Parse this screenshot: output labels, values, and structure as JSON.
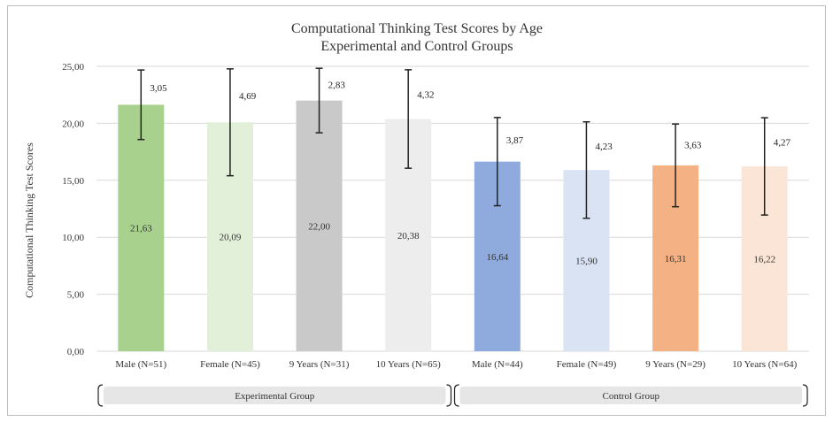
{
  "chart_data": {
    "type": "bar",
    "title": "Computational Thinking Test Scores by Age",
    "subtitle": "Experimental and Control Groups",
    "ylabel": "Computational Thinking Test Scores",
    "xlabel": "",
    "ylim": [
      0,
      25
    ],
    "yticks": [
      "0,00",
      "5,00",
      "10,00",
      "15,00",
      "20,00",
      "25,00"
    ],
    "grid": true,
    "categories": [
      "Male (N=51)",
      "Female (N=45)",
      "9 Years (N=31)",
      "10 Years (N=65)",
      "Male (N=44)",
      "Female (N=49)",
      "9 Years (N=29)",
      "10 Years (N=64)"
    ],
    "values": [
      21.63,
      20.09,
      22.0,
      20.38,
      16.64,
      15.9,
      16.31,
      16.22
    ],
    "value_labels": [
      "21,63",
      "20,09",
      "22,00",
      "20,38",
      "16,64",
      "15,90",
      "16,31",
      "16,22"
    ],
    "errors": [
      3.05,
      4.69,
      2.83,
      4.32,
      3.87,
      4.23,
      3.63,
      4.27
    ],
    "error_labels": [
      "3,05",
      "4,69",
      "2,83",
      "4,32",
      "3,87",
      "4,23",
      "3,63",
      "4,27"
    ],
    "colors": [
      "#a9d18e",
      "#e2f0d9",
      "#c9c9c9",
      "#ededed",
      "#8faadc",
      "#dae3f3",
      "#f4b183",
      "#fbe5d6"
    ],
    "groups": [
      {
        "label": "Experimental Group",
        "start": 0,
        "end": 3
      },
      {
        "label": "Control Group",
        "start": 4,
        "end": 7
      }
    ]
  }
}
